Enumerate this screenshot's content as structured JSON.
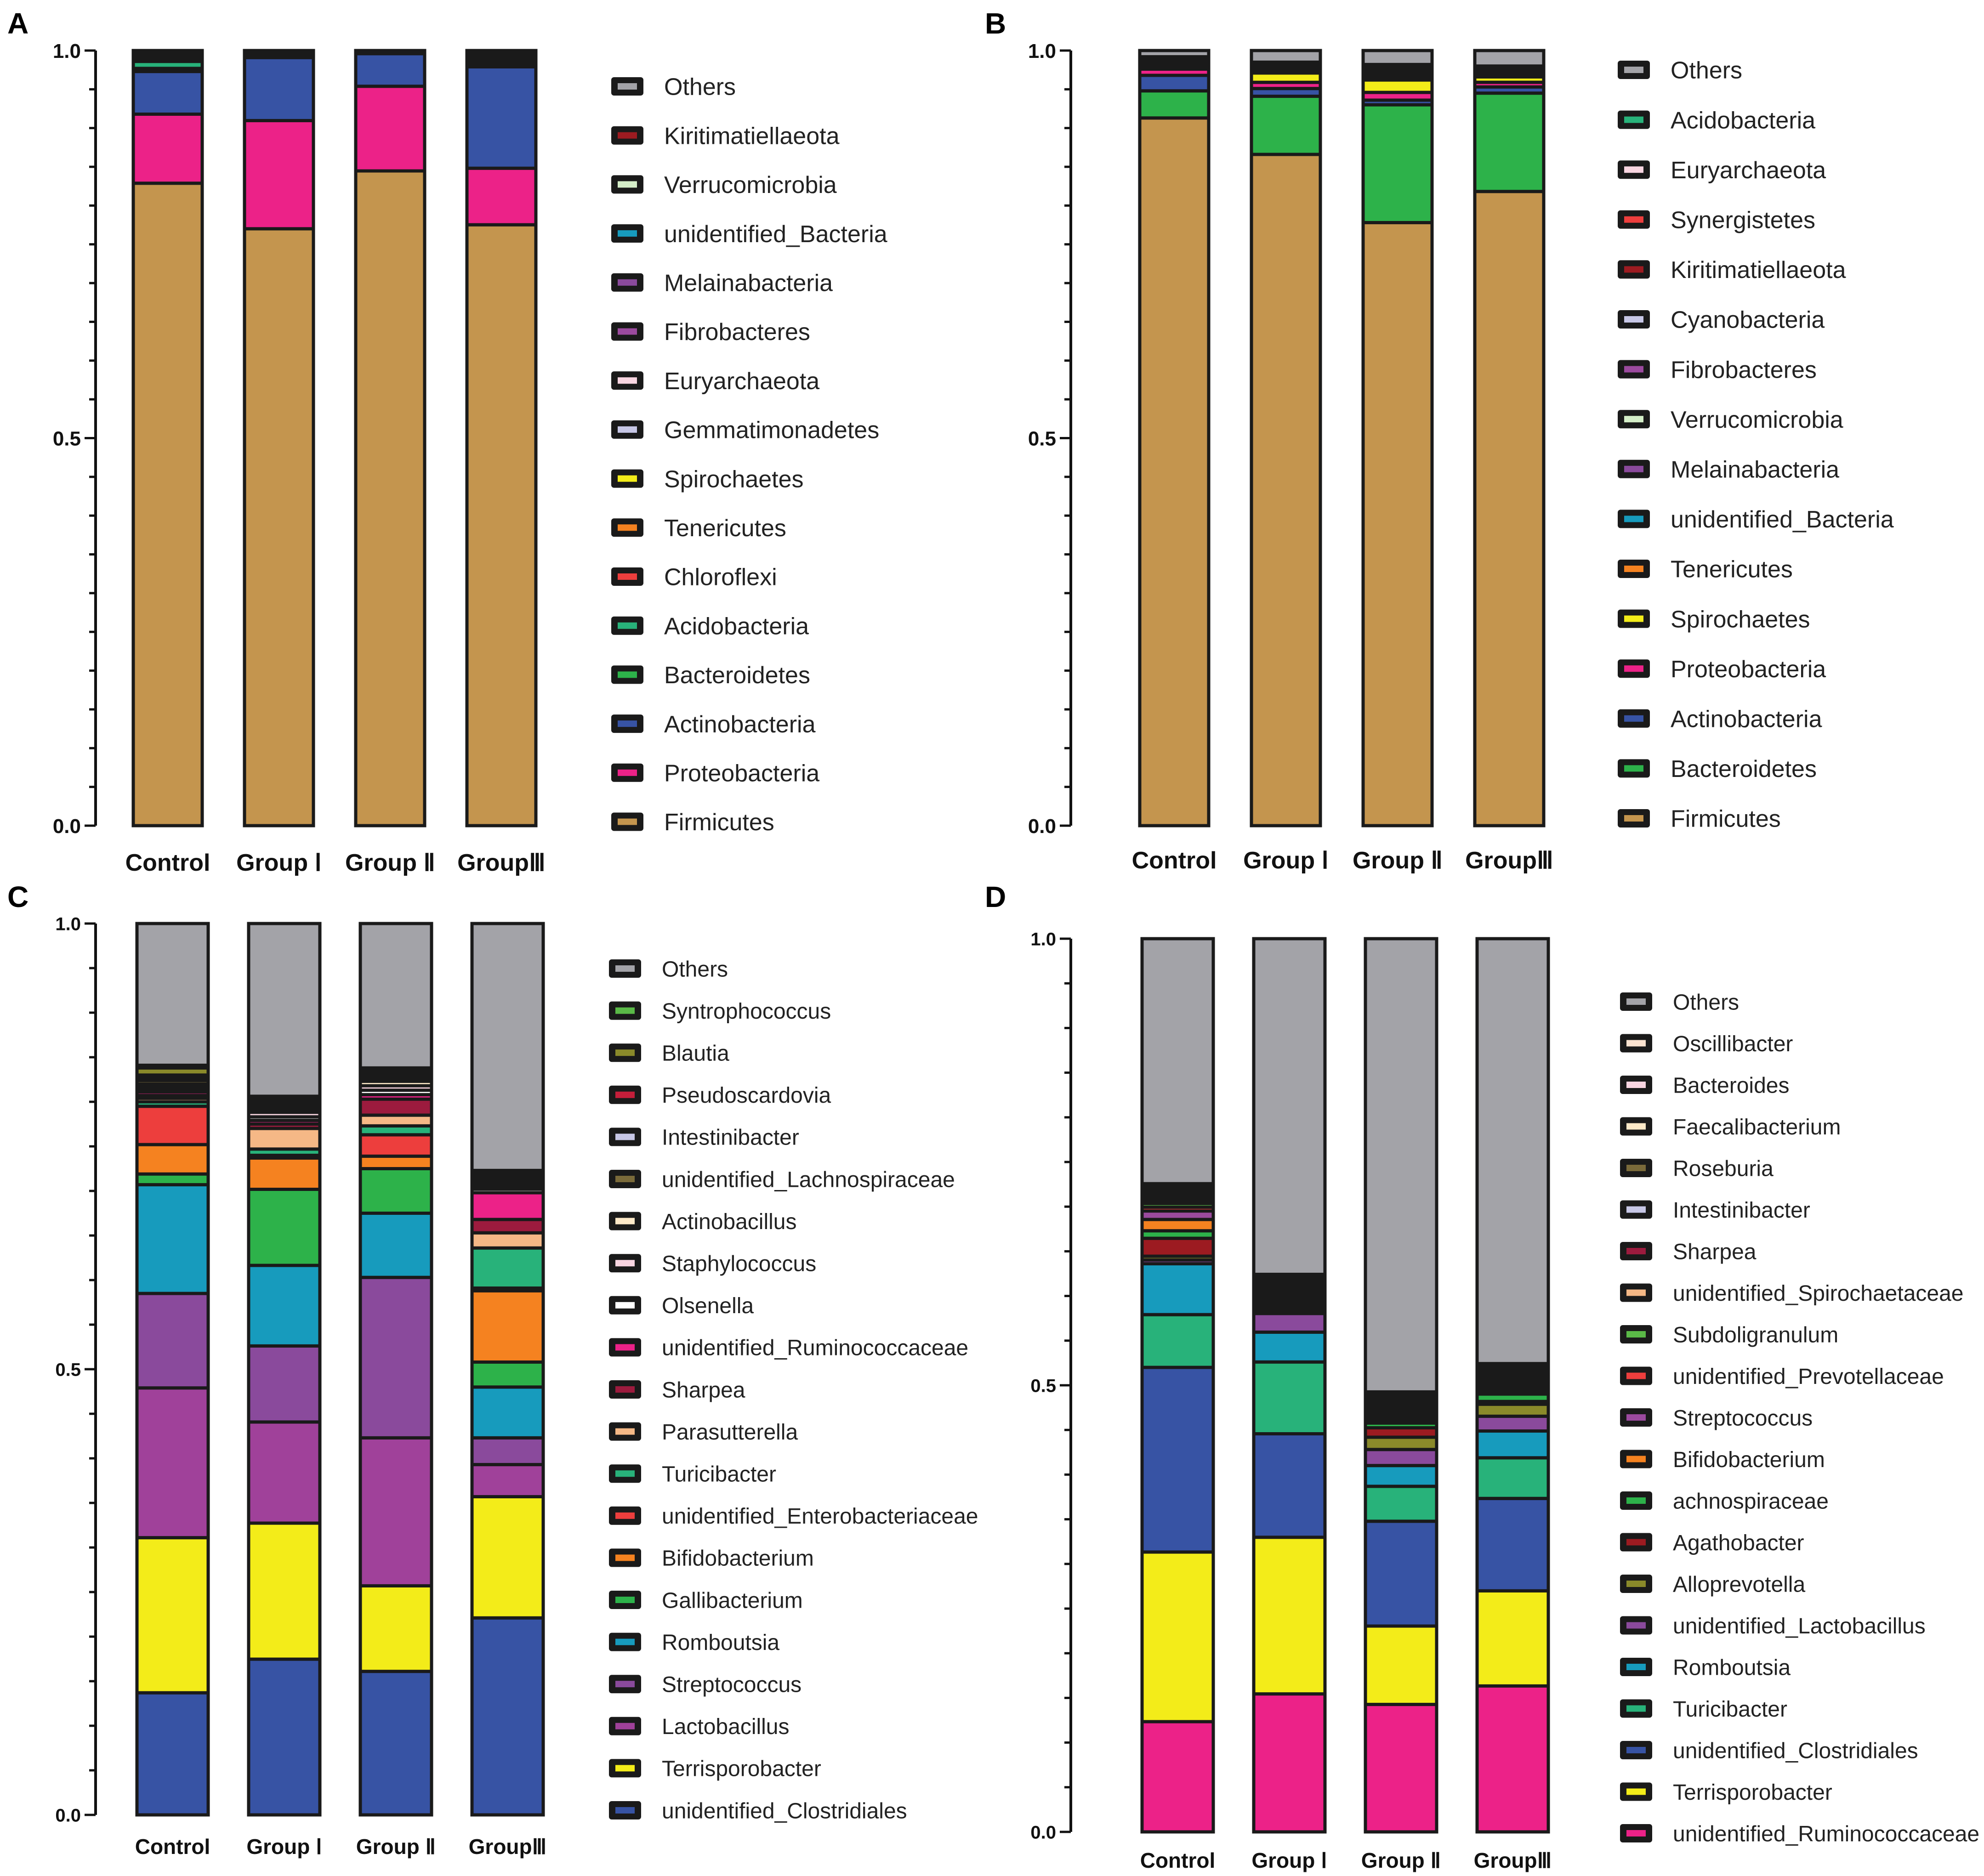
{
  "chart_data": [
    {
      "panel": "A",
      "type": "stacked-bar",
      "categories": [
        "Control",
        "Group Ⅰ",
        "Group Ⅱ",
        "GroupⅢ"
      ],
      "ylim": [
        0,
        1.0
      ],
      "yticks": [
        "0.0",
        "0.5",
        "1.0"
      ],
      "series": [
        {
          "name": "Firmicutes",
          "color": "#c4954e",
          "values": [
            0.828,
            0.767,
            0.843,
            0.776
          ]
        },
        {
          "name": "Proteobacteria",
          "color": "#ec2288",
          "values": [
            0.089,
            0.139,
            0.109,
            0.073
          ]
        },
        {
          "name": "Actinobacteria",
          "color": "#3753a4",
          "values": [
            0.055,
            0.081,
            0.042,
            0.131
          ]
        },
        {
          "name": "Bacteroidetes",
          "color": "#2db24a",
          "values": [
            0.004,
            0.002,
            0.001,
            0.004
          ]
        },
        {
          "name": "Acidobacteria",
          "color": "#28b27a",
          "values": [
            0.009,
            0.002,
            0.001,
            0.004
          ]
        },
        {
          "name": "Chloroflexi",
          "color": "#ed3e3d",
          "values": [
            0.002,
            0.001,
            0.001,
            0.001
          ]
        },
        {
          "name": "Tenericutes",
          "color": "#f58220",
          "values": [
            0.001,
            0.001,
            0.0,
            0.001
          ]
        },
        {
          "name": "Spirochaetes",
          "color": "#f3ec19",
          "values": [
            0.001,
            0.001,
            0.0,
            0.001
          ]
        },
        {
          "name": "Gemmatimonadetes",
          "color": "#c7c7e6",
          "values": [
            0.001,
            0.0,
            0.0,
            0.001
          ]
        },
        {
          "name": "Euryarchaeota",
          "color": "#f9d5e1",
          "values": [
            0.001,
            0.0,
            0.0,
            0.001
          ]
        },
        {
          "name": "Fibrobacteres",
          "color": "#9b4a9e",
          "values": [
            0.001,
            0.0,
            0.0,
            0.001
          ]
        },
        {
          "name": "Melainabacteria",
          "color": "#8a4a9c",
          "values": [
            0.001,
            0.0,
            0.0,
            0.001
          ]
        },
        {
          "name": "unidentified_Bacteria",
          "color": "#179bbd",
          "values": [
            0.001,
            0.0,
            0.0,
            0.001
          ]
        },
        {
          "name": "Verrucomicrobia",
          "color": "#d4eec8",
          "values": [
            0.001,
            0.0,
            0.0,
            0.001
          ]
        },
        {
          "name": "Kiritimatiellaeota",
          "color": "#9c1b21",
          "values": [
            0.001,
            0.0,
            0.0,
            0.001
          ]
        },
        {
          "name": "Others",
          "color": "#a3a3a8",
          "values": [
            0.003,
            0.002,
            0.001,
            0.003
          ]
        }
      ]
    },
    {
      "panel": "B",
      "type": "stacked-bar",
      "categories": [
        "Control",
        "Group Ⅰ",
        "Group Ⅱ",
        "GroupⅢ"
      ],
      "ylim": [
        0,
        1.0
      ],
      "yticks": [
        "0.0",
        "0.5",
        "1.0"
      ],
      "series": [
        {
          "name": "Firmicutes",
          "color": "#c4954e",
          "values": [
            0.913,
            0.866,
            0.778,
            0.819
          ]
        },
        {
          "name": "Bacteroidetes",
          "color": "#2db24a",
          "values": [
            0.035,
            0.075,
            0.152,
            0.127
          ]
        },
        {
          "name": "Actinobacteria",
          "color": "#3753a4",
          "values": [
            0.02,
            0.01,
            0.006,
            0.008
          ]
        },
        {
          "name": "Proteobacteria",
          "color": "#ec2288",
          "values": [
            0.008,
            0.008,
            0.01,
            0.006
          ]
        },
        {
          "name": "Spirochaetes",
          "color": "#f3ec19",
          "values": [
            0.003,
            0.012,
            0.016,
            0.007
          ]
        },
        {
          "name": "Tenericutes",
          "color": "#f58220",
          "values": [
            0.002,
            0.002,
            0.002,
            0.002
          ]
        },
        {
          "name": "unidentified_Bacteria",
          "color": "#179bbd",
          "values": [
            0.002,
            0.002,
            0.002,
            0.002
          ]
        },
        {
          "name": "Melainabacteria",
          "color": "#8a4a9c",
          "values": [
            0.002,
            0.002,
            0.002,
            0.002
          ]
        },
        {
          "name": "Verrucomicrobia",
          "color": "#d4eec8",
          "values": [
            0.001,
            0.001,
            0.002,
            0.001
          ]
        },
        {
          "name": "Fibrobacteres",
          "color": "#9b4a9e",
          "values": [
            0.001,
            0.002,
            0.002,
            0.002
          ]
        },
        {
          "name": "Cyanobacteria",
          "color": "#c7c7e6",
          "values": [
            0.001,
            0.001,
            0.002,
            0.001
          ]
        },
        {
          "name": "Kiritimatiellaeota",
          "color": "#9c1b21",
          "values": [
            0.001,
            0.001,
            0.002,
            0.001
          ]
        },
        {
          "name": "Synergistetes",
          "color": "#ed3e3d",
          "values": [
            0.001,
            0.001,
            0.002,
            0.001
          ]
        },
        {
          "name": "Euryarchaeota",
          "color": "#f9d5e1",
          "values": [
            0.001,
            0.001,
            0.002,
            0.001
          ]
        },
        {
          "name": "Acidobacteria",
          "color": "#28b27a",
          "values": [
            0.001,
            0.001,
            0.002,
            0.001
          ]
        },
        {
          "name": "Others",
          "color": "#a3a3a8",
          "values": [
            0.008,
            0.015,
            0.018,
            0.02
          ]
        }
      ]
    },
    {
      "panel": "C",
      "type": "stacked-bar",
      "categories": [
        "Control",
        "Group Ⅰ",
        "Group Ⅱ",
        "GroupⅢ"
      ],
      "ylim": [
        0,
        1.0
      ],
      "yticks": [
        "0.0",
        "0.5",
        "1.0"
      ],
      "series": [
        {
          "name": "unidentified_Clostridiales",
          "color": "#3753a4",
          "values": [
            0.137,
            0.174,
            0.161,
            0.221
          ]
        },
        {
          "name": "Terrisporobacter",
          "color": "#f3ec19",
          "values": [
            0.174,
            0.152,
            0.096,
            0.136
          ]
        },
        {
          "name": "Lactobacillus",
          "color": "#a0419a",
          "values": [
            0.168,
            0.113,
            0.166,
            0.036
          ]
        },
        {
          "name": "Streptococcus",
          "color": "#8a4a9c",
          "values": [
            0.106,
            0.085,
            0.18,
            0.03
          ]
        },
        {
          "name": "Romboutsia",
          "color": "#179bbd",
          "values": [
            0.122,
            0.09,
            0.072,
            0.057
          ]
        },
        {
          "name": "Gallibacterium",
          "color": "#2db24a",
          "values": [
            0.012,
            0.085,
            0.05,
            0.028
          ]
        },
        {
          "name": "Bifidobacterium",
          "color": "#f58220",
          "values": [
            0.033,
            0.035,
            0.014,
            0.08
          ]
        },
        {
          "name": "unidentified_Enterobacteriaceae",
          "color": "#ed3e3d",
          "values": [
            0.043,
            0.003,
            0.024,
            0.003
          ]
        },
        {
          "name": "Turicibacter",
          "color": "#28b27a",
          "values": [
            0.005,
            0.007,
            0.01,
            0.045
          ]
        },
        {
          "name": "Parasutterella",
          "color": "#f5b886",
          "values": [
            0.004,
            0.023,
            0.012,
            0.017
          ]
        },
        {
          "name": "Sharpea",
          "color": "#9c1b3e",
          "values": [
            0.003,
            0.005,
            0.018,
            0.015
          ]
        },
        {
          "name": "unidentified_Ruminococcaceae",
          "color": "#ec2288",
          "values": [
            0.004,
            0.004,
            0.005,
            0.03
          ]
        },
        {
          "name": "Olsenella",
          "color": "#ffffff",
          "values": [
            0.003,
            0.004,
            0.005,
            0.004
          ]
        },
        {
          "name": "Staphylococcus",
          "color": "#f9d5e1",
          "values": [
            0.003,
            0.005,
            0.005,
            0.003
          ]
        },
        {
          "name": "Actinobacillus",
          "color": "#fde9c8",
          "values": [
            0.003,
            0.003,
            0.005,
            0.003
          ]
        },
        {
          "name": "unidentified_Lachnospiraceae",
          "color": "#7a6a3a",
          "values": [
            0.004,
            0.003,
            0.003,
            0.003
          ]
        },
        {
          "name": "Intestinibacter",
          "color": "#c7c7e6",
          "values": [
            0.003,
            0.003,
            0.003,
            0.003
          ]
        },
        {
          "name": "Pseudoscardovia",
          "color": "#c41e3a",
          "values": [
            0.003,
            0.003,
            0.003,
            0.003
          ]
        },
        {
          "name": "Blautia",
          "color": "#8a8a2a",
          "values": [
            0.008,
            0.003,
            0.003,
            0.003
          ]
        },
        {
          "name": "Syntrophococcus",
          "color": "#5ab947",
          "values": [
            0.003,
            0.003,
            0.003,
            0.003
          ]
        },
        {
          "name": "Others",
          "color": "#a3a3a8",
          "values": [
            0.159,
            0.193,
            0.162,
            0.277
          ]
        }
      ]
    },
    {
      "panel": "D",
      "type": "stacked-bar",
      "categories": [
        "Control",
        "Group Ⅰ",
        "Group Ⅱ",
        "GroupⅢ"
      ],
      "ylim": [
        0,
        1.0
      ],
      "yticks": [
        "0.0",
        "0.5",
        "1.0"
      ],
      "series": [
        {
          "name": "unidentified_Ruminococcaceae",
          "color": "#ec2288",
          "values": [
            0.117,
            0.148,
            0.135,
            0.158
          ]
        },
        {
          "name": "Terrisporobacter",
          "color": "#f3ec19",
          "values": [
            0.18,
            0.168,
            0.083,
            0.103
          ]
        },
        {
          "name": "unidentified_Clostridiales",
          "color": "#3753a4",
          "values": [
            0.196,
            0.111,
            0.111,
            0.1
          ]
        },
        {
          "name": "Turicibacter",
          "color": "#28b27a",
          "values": [
            0.056,
            0.077,
            0.037,
            0.044
          ]
        },
        {
          "name": "Romboutsia",
          "color": "#179bbd",
          "values": [
            0.054,
            0.032,
            0.022,
            0.029
          ]
        },
        {
          "name": "unidentified_Lactobacillus",
          "color": "#8a4a9c",
          "values": [
            0.004,
            0.02,
            0.017,
            0.016
          ]
        },
        {
          "name": "Alloprevotella",
          "color": "#8a8a2a",
          "values": [
            0.004,
            0.003,
            0.013,
            0.013
          ]
        },
        {
          "name": "Agathobacter",
          "color": "#9c1b21",
          "values": [
            0.019,
            0.003,
            0.01,
            0.003
          ]
        },
        {
          "name": "achnospiraceae",
          "color": "#2db24a",
          "values": [
            0.008,
            0.003,
            0.005,
            0.008
          ]
        },
        {
          "name": "Bifidobacterium",
          "color": "#f58220",
          "values": [
            0.012,
            0.003,
            0.003,
            0.003
          ]
        },
        {
          "name": "Streptococcus",
          "color": "#9b4a9e",
          "values": [
            0.009,
            0.003,
            0.003,
            0.003
          ]
        },
        {
          "name": "unidentified_Prevotellaceae",
          "color": "#ed3e3d",
          "values": [
            0.004,
            0.003,
            0.003,
            0.003
          ]
        },
        {
          "name": "Subdoligranulum",
          "color": "#5ab947",
          "values": [
            0.004,
            0.003,
            0.003,
            0.003
          ]
        },
        {
          "name": "unidentified_Spirochaetaceae",
          "color": "#f5b886",
          "values": [
            0.003,
            0.003,
            0.003,
            0.003
          ]
        },
        {
          "name": "Sharpea",
          "color": "#9c1b3e",
          "values": [
            0.003,
            0.003,
            0.003,
            0.003
          ]
        },
        {
          "name": "Intestinibacter",
          "color": "#c7c7e6",
          "values": [
            0.003,
            0.003,
            0.003,
            0.003
          ]
        },
        {
          "name": "Roseburia",
          "color": "#7a6a3a",
          "values": [
            0.003,
            0.003,
            0.003,
            0.003
          ]
        },
        {
          "name": "Faecalibacterium",
          "color": "#fde9c8",
          "values": [
            0.003,
            0.003,
            0.003,
            0.003
          ]
        },
        {
          "name": "Bacteroides",
          "color": "#f9d5e1",
          "values": [
            0.003,
            0.003,
            0.003,
            0.003
          ]
        },
        {
          "name": "Oscillibacter",
          "color": "#fbe3d0",
          "values": [
            0.003,
            0.003,
            0.003,
            0.003
          ]
        },
        {
          "name": "Others",
          "color": "#a3a3a8",
          "values": [
            0.26,
            0.36,
            0.48,
            0.46
          ]
        }
      ]
    }
  ],
  "panels": [
    {
      "letter": "A"
    },
    {
      "letter": "B"
    },
    {
      "letter": "C"
    },
    {
      "letter": "D"
    }
  ]
}
